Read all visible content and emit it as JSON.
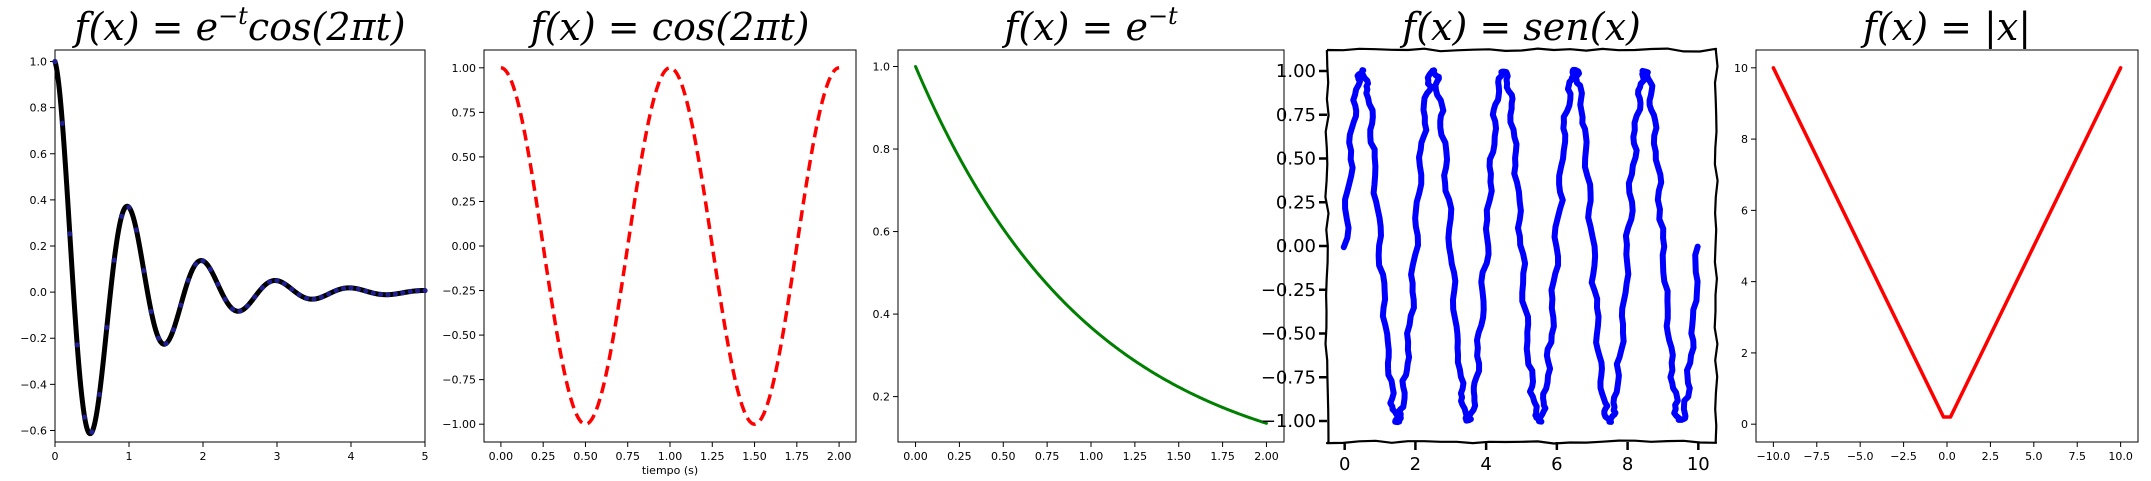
{
  "chart_data": [
    {
      "type": "line",
      "title": "f(x) = e^{-t}cos(2πt)",
      "title_parts": {
        "base": "f(x) = e",
        "sup": "−t",
        "rest": "cos(2πt)"
      },
      "xlabel": "",
      "ylabel": "",
      "function": "exp(-t)*cos(2*pi*t)",
      "xlim": [
        0,
        5
      ],
      "ylim": [
        -0.65,
        1.05
      ],
      "xticks": [
        0,
        1,
        2,
        3,
        4,
        5
      ],
      "yticks": [
        -0.6,
        -0.4,
        -0.2,
        0.0,
        0.2,
        0.4,
        0.6,
        0.8,
        1.0
      ],
      "ytick_labels": [
        "−0.6",
        "−0.4",
        "−0.2",
        "0.0",
        "0.2",
        "0.4",
        "0.6",
        "0.8",
        "1.0"
      ],
      "x": [
        0,
        0.1,
        0.2,
        0.3,
        0.4,
        0.5,
        0.6,
        0.7,
        0.8,
        0.9,
        1.0,
        1.1,
        1.2,
        1.3,
        1.4,
        1.5,
        1.6,
        1.7,
        1.8,
        1.9,
        2.0,
        2.1,
        2.2,
        2.3,
        2.4,
        2.5,
        2.6,
        2.7,
        2.8,
        2.9,
        3.0,
        3.1,
        3.2,
        3.3,
        3.4,
        3.5,
        3.6,
        3.7,
        3.8,
        3.9,
        4.0,
        4.1,
        4.2,
        4.3,
        4.4,
        4.5,
        4.6,
        4.7,
        4.8,
        4.9,
        5.0
      ],
      "series": [
        {
          "name": "",
          "style": "solid",
          "color": "#000000",
          "width": 5,
          "samples": 500
        },
        {
          "name": "",
          "style": "markers",
          "color": "#1f1f8f",
          "marker": "circle"
        }
      ],
      "grid": false
    },
    {
      "type": "line",
      "title": "f(x) = cos(2πt)",
      "xlabel": "tiempo (s)",
      "ylabel": "",
      "function": "cos(2*pi*t)",
      "xlim": [
        -0.1,
        2.1
      ],
      "ylim": [
        -1.1,
        1.1
      ],
      "xticks": [
        0.0,
        0.25,
        0.5,
        0.75,
        1.0,
        1.25,
        1.5,
        1.75,
        2.0
      ],
      "xtick_labels": [
        "0.00",
        "0.25",
        "0.50",
        "0.75",
        "1.00",
        "1.25",
        "1.50",
        "1.75",
        "2.00"
      ],
      "yticks": [
        -1.0,
        -0.75,
        -0.5,
        -0.25,
        0.0,
        0.25,
        0.5,
        0.75,
        1.0
      ],
      "ytick_labels": [
        "−1.00",
        "−0.75",
        "−0.50",
        "−0.25",
        "0.00",
        "0.25",
        "0.50",
        "0.75",
        "1.00"
      ],
      "series": [
        {
          "name": "",
          "style": "dashed",
          "color": "#ff0000",
          "width": 3.5,
          "samples": 400
        }
      ],
      "grid": false
    },
    {
      "type": "line",
      "title": "f(x) = e^{-t}",
      "title_parts": {
        "base": "f(x) = e",
        "sup": "−t",
        "rest": ""
      },
      "xlabel": "",
      "ylabel": "",
      "function": "exp(-t)",
      "xlim": [
        -0.1,
        2.1
      ],
      "ylim": [
        0.09,
        1.04
      ],
      "xticks": [
        0.0,
        0.25,
        0.5,
        0.75,
        1.0,
        1.25,
        1.5,
        1.75,
        2.0
      ],
      "xtick_labels": [
        "0.00",
        "0.25",
        "0.50",
        "0.75",
        "1.00",
        "1.25",
        "1.50",
        "1.75",
        "2.00"
      ],
      "yticks": [
        0.2,
        0.4,
        0.6,
        0.8,
        1.0
      ],
      "ytick_labels": [
        "0.2",
        "0.4",
        "0.6",
        "0.8",
        "1.0"
      ],
      "series": [
        {
          "name": "",
          "style": "solid",
          "color": "#008000",
          "width": 3,
          "samples": 200
        }
      ],
      "grid": false
    },
    {
      "type": "line",
      "title": "f(x) = sen(x)",
      "xlabel": "",
      "ylabel": "",
      "function": "sin(pi*x)",
      "style": "xkcd",
      "xlim": [
        -0.5,
        10.5
      ],
      "ylim": [
        -1.12,
        1.12
      ],
      "xticks": [
        0,
        2,
        4,
        6,
        8,
        10
      ],
      "xtick_labels": [
        "0",
        "2",
        "4",
        "6",
        "8",
        "10"
      ],
      "yticks": [
        -1.0,
        -0.75,
        -0.5,
        -0.25,
        0.0,
        0.25,
        0.5,
        0.75,
        1.0
      ],
      "ytick_labels": [
        "−1.00",
        "−0.75",
        "−0.50",
        "−0.25",
        "0.00",
        "0.25",
        "0.50",
        "0.75",
        "1.00"
      ],
      "series": [
        {
          "name": "",
          "style": "solid",
          "color": "#0000ff",
          "width": 6,
          "samples": 600
        }
      ],
      "grid": false
    },
    {
      "type": "line",
      "title": "f(x) = |x|",
      "xlabel": "",
      "ylabel": "",
      "function": "abs(x)",
      "x": [
        -10,
        -0.2,
        0.2,
        10
      ],
      "values": [
        10,
        0.2,
        0.2,
        10
      ],
      "xlim": [
        -11,
        11
      ],
      "ylim": [
        -0.5,
        10.5
      ],
      "xticks": [
        -10,
        -7.5,
        -5,
        -2.5,
        0,
        2.5,
        5,
        7.5,
        10
      ],
      "xtick_labels": [
        "−10.0",
        "−7.5",
        "−5.0",
        "−2.5",
        "0.0",
        "2.5",
        "5.0",
        "7.5",
        "10.0"
      ],
      "yticks": [
        0,
        2,
        4,
        6,
        8,
        10
      ],
      "ytick_labels": [
        "0",
        "2",
        "4",
        "6",
        "8",
        "10"
      ],
      "series": [
        {
          "name": "",
          "style": "solid",
          "color": "#ff0000",
          "width": 3.5
        }
      ],
      "grid": false
    }
  ]
}
